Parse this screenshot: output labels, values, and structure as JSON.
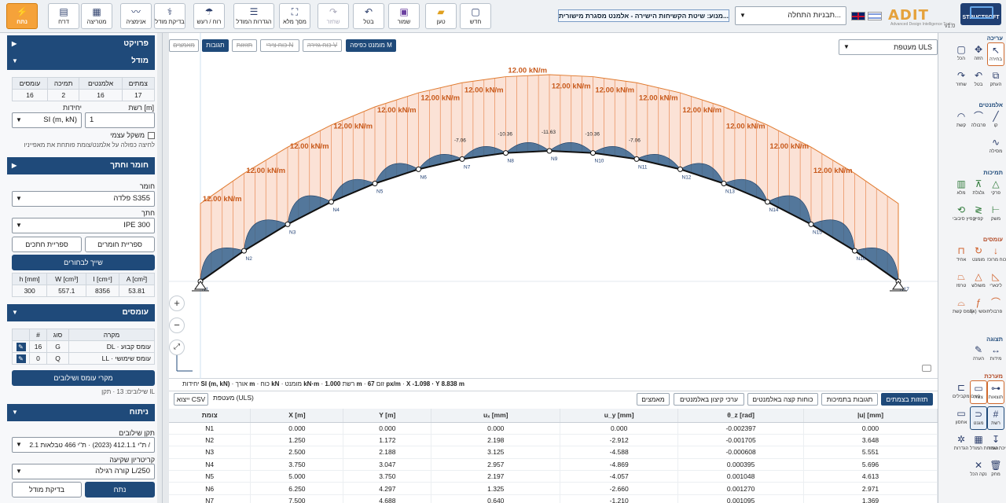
{
  "toolbar": {
    "solve": "נתח",
    "report": "דו\"ח",
    "animation": "אנימציה",
    "matrix": "מטריצה",
    "check_model": "בדיקת מודל",
    "wind_snow": "רוח / רעש",
    "model_settings": "הגדרות המודל",
    "fullscreen": "מסך מלא",
    "redo": "שחזר",
    "undo": "בטל",
    "save": "שמור",
    "load": "טען",
    "new": "חדש"
  },
  "header": {
    "menu_strip": "מנוע: שיטת הקשיחות הישירה - אלמנט מסגרת מישורית...",
    "template_select": "תבניות התחלה...",
    "logo": "ADIT",
    "logo_sub": "Advanced Design Intelligence Tools",
    "brand": "STRUCTSOFT",
    "version": "v1.0"
  },
  "left": {
    "project": "פרויקט",
    "model": "מודל",
    "counts_headers": [
      "עומסים",
      "תמיכה",
      "אלמנטים",
      "צמתים"
    ],
    "counts_values": [
      "16",
      "2",
      "16",
      "17"
    ],
    "grid_label": "רשת [m]",
    "grid_value": "1",
    "units_label": "יחידות",
    "units_value": "SI (m, kN)",
    "self_weight": "משקל עצמי",
    "hint": "לחיצה כפולה על אלמנט/צומת פותחת את מאפייניו",
    "material_section": "חומר וחתך",
    "material_label": "חומר",
    "material_value": "פלדה S355",
    "section_label": "חתך",
    "section_value": "IPE 300",
    "materials_lib": "ספריית חומרים",
    "sections_lib": "ספריית חתכים",
    "assign": "שייך לבחורים",
    "props_headers": [
      "A [cm²]",
      "I [cm⁴]",
      "W [cm³]",
      "h [mm]"
    ],
    "props_values": [
      "53.81",
      "8356",
      "557.1",
      "300"
    ],
    "loads_section": "עומסים",
    "loads_headers": [
      "מקרה",
      "סוג",
      "#"
    ],
    "loads_rows": [
      {
        "case": "DL · עומס קבוע",
        "type": "G",
        "n": "16"
      },
      {
        "case": "LL · עומס שימושי",
        "type": "Q",
        "n": "0"
      }
    ],
    "load_cases_btn": "מקרי עומס ושילובים",
    "combos_info": "שילובים: 13 · תקן IL",
    "analysis_section": "ניתוח",
    "standard_label": "תקן שילובים",
    "standard_value": "ת\"י 412.1.1 (2023) · ת\"י 466 טבלאות 2.1 /",
    "deflection_label": "קריטריון שקיעה",
    "deflection_value": "קורה רגילה L/250",
    "solve_btn": "נתח",
    "check_btn": "בדיקת מודל"
  },
  "view": {
    "tabs": [
      "מומנט כפיפה M",
      "כוח גזירה V",
      "כוח צירי N",
      "תזוזות",
      "תגובות",
      "מאמצים"
    ],
    "combo": "מעטפת ULS",
    "zoom_in": "+",
    "zoom_out": "−",
    "fit": "⤢",
    "load_label": "12.00 kN/m",
    "moment_labels": [
      "-7.06",
      "-10.36",
      "-11.63",
      "-10.36",
      "-7.06"
    ],
    "nodes": [
      "N1",
      "N2",
      "N3",
      "N4",
      "N5",
      "N6",
      "N7",
      "N8",
      "N9",
      "N10",
      "N11",
      "N12",
      "N13",
      "N14",
      "N15",
      "N16",
      "N17"
    ]
  },
  "status": {
    "units": "SI (m, kN)",
    "length": "m",
    "force": "kN",
    "moment": "kN·m",
    "grid": "1.000",
    "grid_unit": "m",
    "zoom": "67",
    "zoom_unit": "px/m",
    "coords": "X -1.098 · Y 8.838 m",
    "units_lbl": "יחידות",
    "length_lbl": "אורך",
    "force_lbl": "כוח",
    "moment_lbl": "מומנט",
    "grid_lbl": "רשת",
    "zoom_lbl": "זום"
  },
  "results": {
    "buttons": [
      "תזוזות בצמתים",
      "תגובות בתמיכות",
      "כוחות קצה באלמנטים",
      "ערכי קיצון באלמנטים",
      "מאמצים"
    ],
    "combo": "מעטפת (ULS)",
    "csv": "ייצוא CSV",
    "headers": [
      "צומת",
      "X [m]",
      "Y [m]",
      "uₓ [mm]",
      "u_y [mm]",
      "θ_z [rad]",
      "|u| [mm]"
    ],
    "rows": [
      [
        "N1",
        "0.000",
        "0.000",
        "0.000",
        "0.000",
        "-0.002397",
        "0.000"
      ],
      [
        "N2",
        "1.250",
        "1.172",
        "2.198",
        "-2.912",
        "-0.001705",
        "3.648"
      ],
      [
        "N3",
        "2.500",
        "2.188",
        "3.125",
        "-4.588",
        "-0.000608",
        "5.551"
      ],
      [
        "N4",
        "3.750",
        "3.047",
        "2.957",
        "-4.869",
        "0.000395",
        "5.696"
      ],
      [
        "N5",
        "5.000",
        "3.750",
        "2.197",
        "-4.057",
        "0.001048",
        "4.613"
      ],
      [
        "N6",
        "6.250",
        "4.297",
        "1.325",
        "-2.660",
        "0.001270",
        "2.971"
      ],
      [
        "N7",
        "7.500",
        "4.688",
        "0.640",
        "-1.210",
        "0.001095",
        "1.369"
      ]
    ]
  },
  "right": {
    "groups": [
      "עריכה",
      "אלמנטים",
      "תמיכות",
      "עומסים",
      "תצוגה",
      "מערכת"
    ],
    "tools_edit": [
      "בחירה",
      "הזזה",
      "הכל",
      "העתק",
      "בטל",
      "שחזר"
    ],
    "tools_elements": [
      "קו",
      "פרבולה",
      "קשת",
      "מסילה"
    ],
    "tools_supports": [
      "פרקי",
      "גלגלת",
      "מלא",
      "משק",
      "קפיץ",
      "קפיץ סיבובי"
    ],
    "tools_loads": [
      "כוח מרוכז",
      "מומנט",
      "אחיד",
      "לינארי",
      "משולש",
      "טרפז",
      "פרבולי",
      "f(x) חופשי",
      "עומס קשת"
    ],
    "tools_view": [
      "מידות",
      "הערה"
    ],
    "tools_system": [
      "תוצאות",
      "צורה",
      "קווים מקבילים",
      "רשת",
      "מגנט",
      "אחסון",
      "משיכת שמור",
      "הגדרות המודל",
      "הגדרות",
      "מחק",
      "נקה הכל"
    ]
  },
  "colors": {
    "accent": "#1f4a7a",
    "orange": "#e07a2e",
    "load": "#f6c9b4",
    "moment": "#2d5f8e"
  }
}
